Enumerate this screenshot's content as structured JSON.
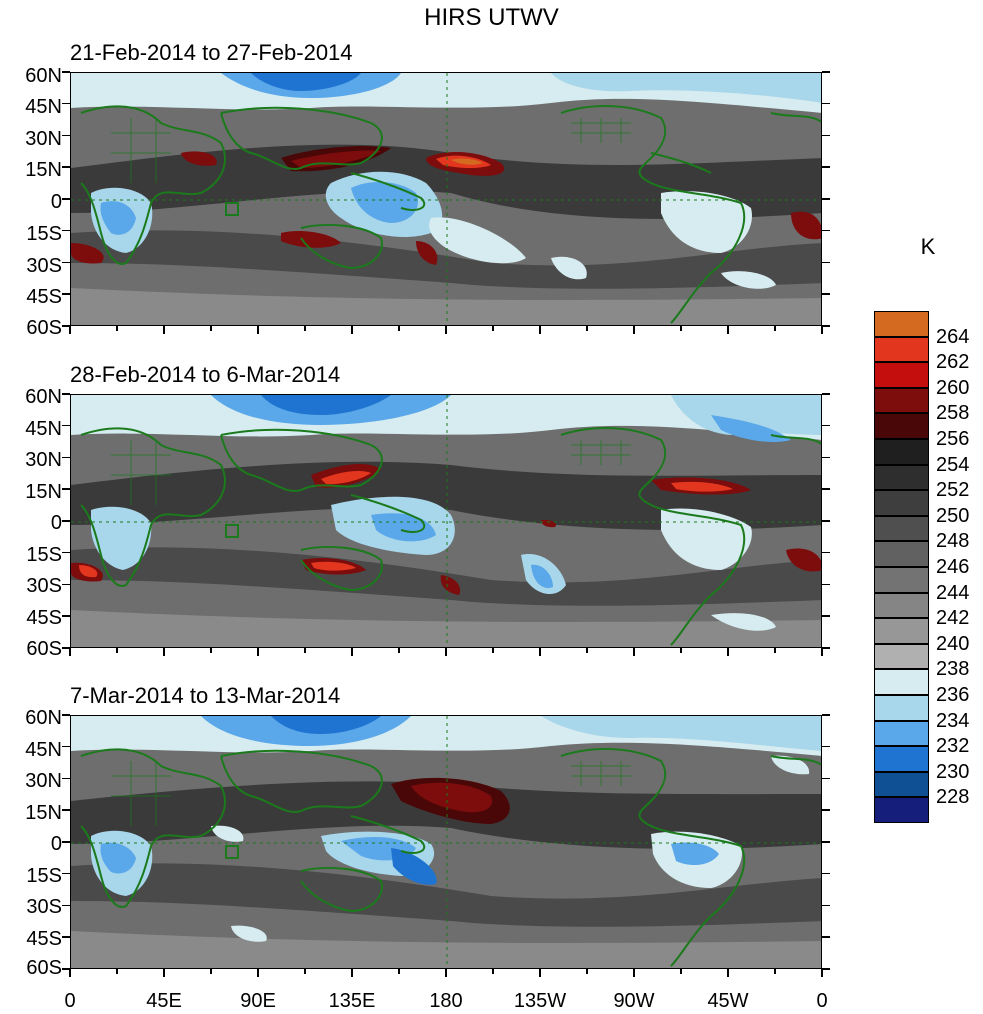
{
  "title": "HIRS UTWV",
  "unit": "K",
  "panels": [
    {
      "label": "21-Feb-2014 to 27-Feb-2014"
    },
    {
      "label": "28-Feb-2014 to 6-Mar-2014"
    },
    {
      "label": "7-Mar-2014 to 13-Mar-2014"
    }
  ],
  "lat_labels": [
    "60N",
    "45N",
    "30N",
    "15N",
    "0",
    "15S",
    "30S",
    "45S",
    "60S"
  ],
  "lon_labels": [
    "0",
    "45E",
    "90E",
    "135E",
    "180",
    "135W",
    "90W",
    "45W",
    "0"
  ],
  "colorbar": {
    "labels": [
      "264",
      "262",
      "260",
      "258",
      "256",
      "254",
      "252",
      "250",
      "248",
      "246",
      "244",
      "242",
      "240",
      "238",
      "236",
      "234",
      "232",
      "230",
      "228"
    ],
    "colors": [
      "#d36a1f",
      "#e2361f",
      "#c40d0d",
      "#7d0c0c",
      "#4a0707",
      "#1f1f1f",
      "#2e2e2e",
      "#3e3e3e",
      "#4f4f4f",
      "#616161",
      "#737373",
      "#858585",
      "#979797",
      "#b0b0b0",
      "#d6ecf0",
      "#a8d6ea",
      "#5aa8ea",
      "#1e74d0",
      "#0f4f94",
      "#151e7a"
    ]
  },
  "colors": {
    "coastline": "#1b7a1b",
    "background_field": "#6e6e6e"
  }
}
